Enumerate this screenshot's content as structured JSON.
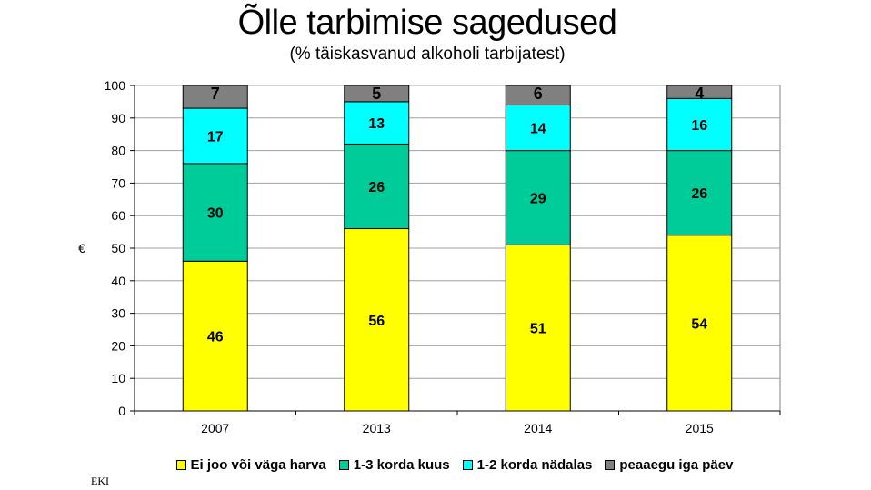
{
  "chart_data": {
    "type": "bar",
    "stacked": true,
    "title": "Õlle tarbimise sagedused",
    "subtitle": "(% täiskasvanud alkoholi tarbijatest)",
    "ylabel": "€",
    "xlabel": "",
    "ylim": [
      0,
      100
    ],
    "yticks": [
      0,
      10,
      20,
      30,
      40,
      50,
      60,
      70,
      80,
      90,
      100
    ],
    "categories": [
      "2007",
      "2013",
      "2014",
      "2015"
    ],
    "grid": true,
    "legend_position": "bottom",
    "series": [
      {
        "name": "Ei joo või väga harva",
        "values": [
          46,
          56,
          51,
          54
        ],
        "color": "#FFFF00"
      },
      {
        "name": "1-3 korda kuus",
        "values": [
          30,
          26,
          29,
          26
        ],
        "color": "#00CC99"
      },
      {
        "name": "1-2 korda nädalas",
        "values": [
          17,
          13,
          14,
          16
        ],
        "color": "#00FFFF"
      },
      {
        "name": "peaaegu iga päev",
        "values": [
          7,
          5,
          6,
          4
        ],
        "color": "#808080"
      }
    ]
  },
  "footer": "EKI"
}
